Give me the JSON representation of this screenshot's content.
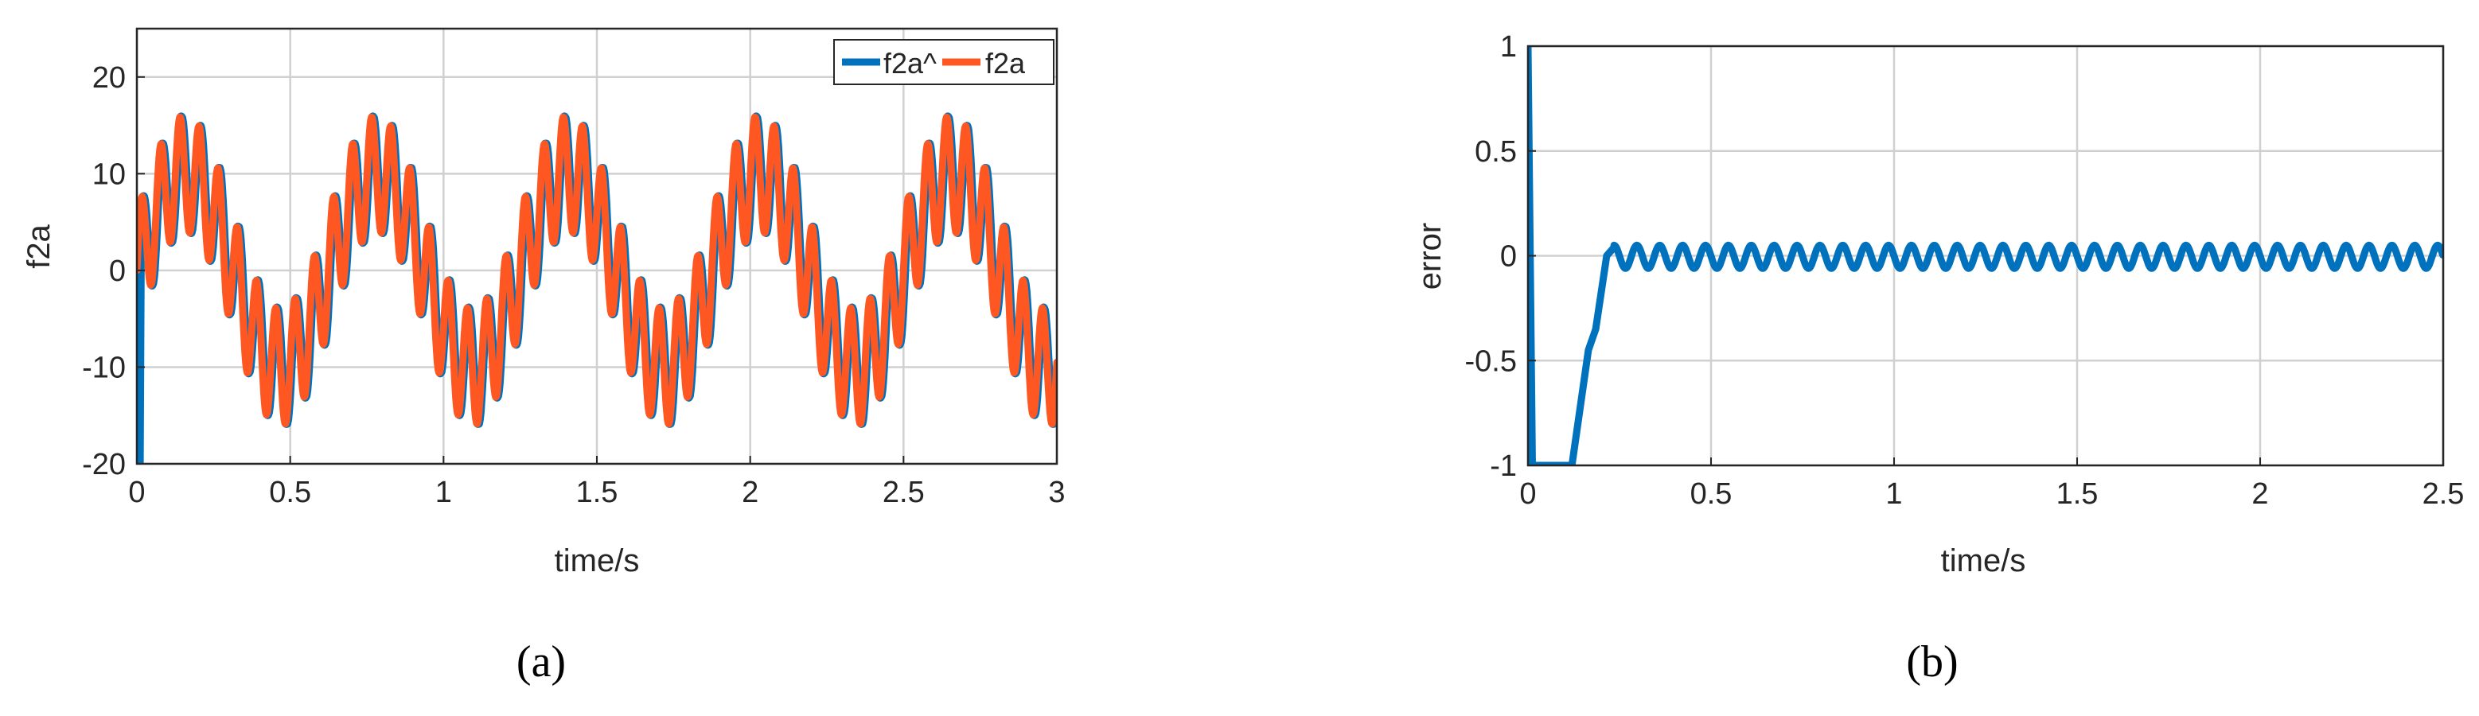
{
  "chart_data": [
    {
      "type": "line",
      "panel_label": "(a)",
      "xlabel": "time/s",
      "ylabel": "f2a",
      "xlim": [
        0,
        3
      ],
      "ylim": [
        -20,
        25
      ],
      "xticks": [
        0,
        0.5,
        1,
        1.5,
        2,
        2.5,
        3
      ],
      "xtick_labels": [
        "0",
        "0.5",
        "1",
        "1.5",
        "2",
        "2.5",
        "3"
      ],
      "yticks": [
        -20,
        -10,
        0,
        10,
        20
      ],
      "ytick_labels": [
        "-20",
        "-10",
        "0",
        "10",
        "20"
      ],
      "grid": true,
      "legend_position": "top-right",
      "signal_model": {
        "components": [
          {
            "amplitude": 10,
            "frequency_hz": 1.6
          },
          {
            "amplitude": 6,
            "frequency_hz": 16
          }
        ],
        "sample_step_s": 0.0025
      },
      "series": [
        {
          "name": "f2a^",
          "color": "#0072BD",
          "line_width": "thick",
          "initial_transient": "drops to -20 at t=0 then follows f2a",
          "phase_offset_s": -0.004
        },
        {
          "name": "f2a",
          "color": "#FF5722",
          "line_width": "thick",
          "phase_offset_s": 0
        }
      ]
    },
    {
      "type": "line",
      "panel_label": "(b)",
      "xlabel": "time/s",
      "ylabel": "error",
      "xlim": [
        0,
        2.5
      ],
      "ylim": [
        -1,
        1
      ],
      "xticks": [
        0,
        0.5,
        1,
        1.5,
        2,
        2.5
      ],
      "xtick_labels": [
        "0",
        "0.5",
        "1",
        "1.5",
        "2",
        "2.5"
      ],
      "yticks": [
        -1,
        -0.5,
        0,
        0.5,
        1
      ],
      "ytick_labels": [
        "-1",
        "-0.5",
        "0",
        "0.5",
        "1"
      ],
      "grid": true,
      "series": [
        {
          "name": "error",
          "color": "#0072BD",
          "line_width": "thick",
          "transient_points": [
            [
              0.0,
              1.0
            ],
            [
              0.012,
              -1.0
            ],
            [
              0.02,
              -1.0
            ],
            [
              0.12,
              -1.0
            ],
            [
              0.165,
              -0.45
            ],
            [
              0.185,
              -0.35
            ],
            [
              0.215,
              0.0
            ],
            [
              0.235,
              0.04
            ]
          ],
          "steady_state": {
            "start": 0.235,
            "end": 2.5,
            "center": -0.005,
            "amplitude": 0.055,
            "frequency_hz": 16
          }
        }
      ]
    }
  ]
}
